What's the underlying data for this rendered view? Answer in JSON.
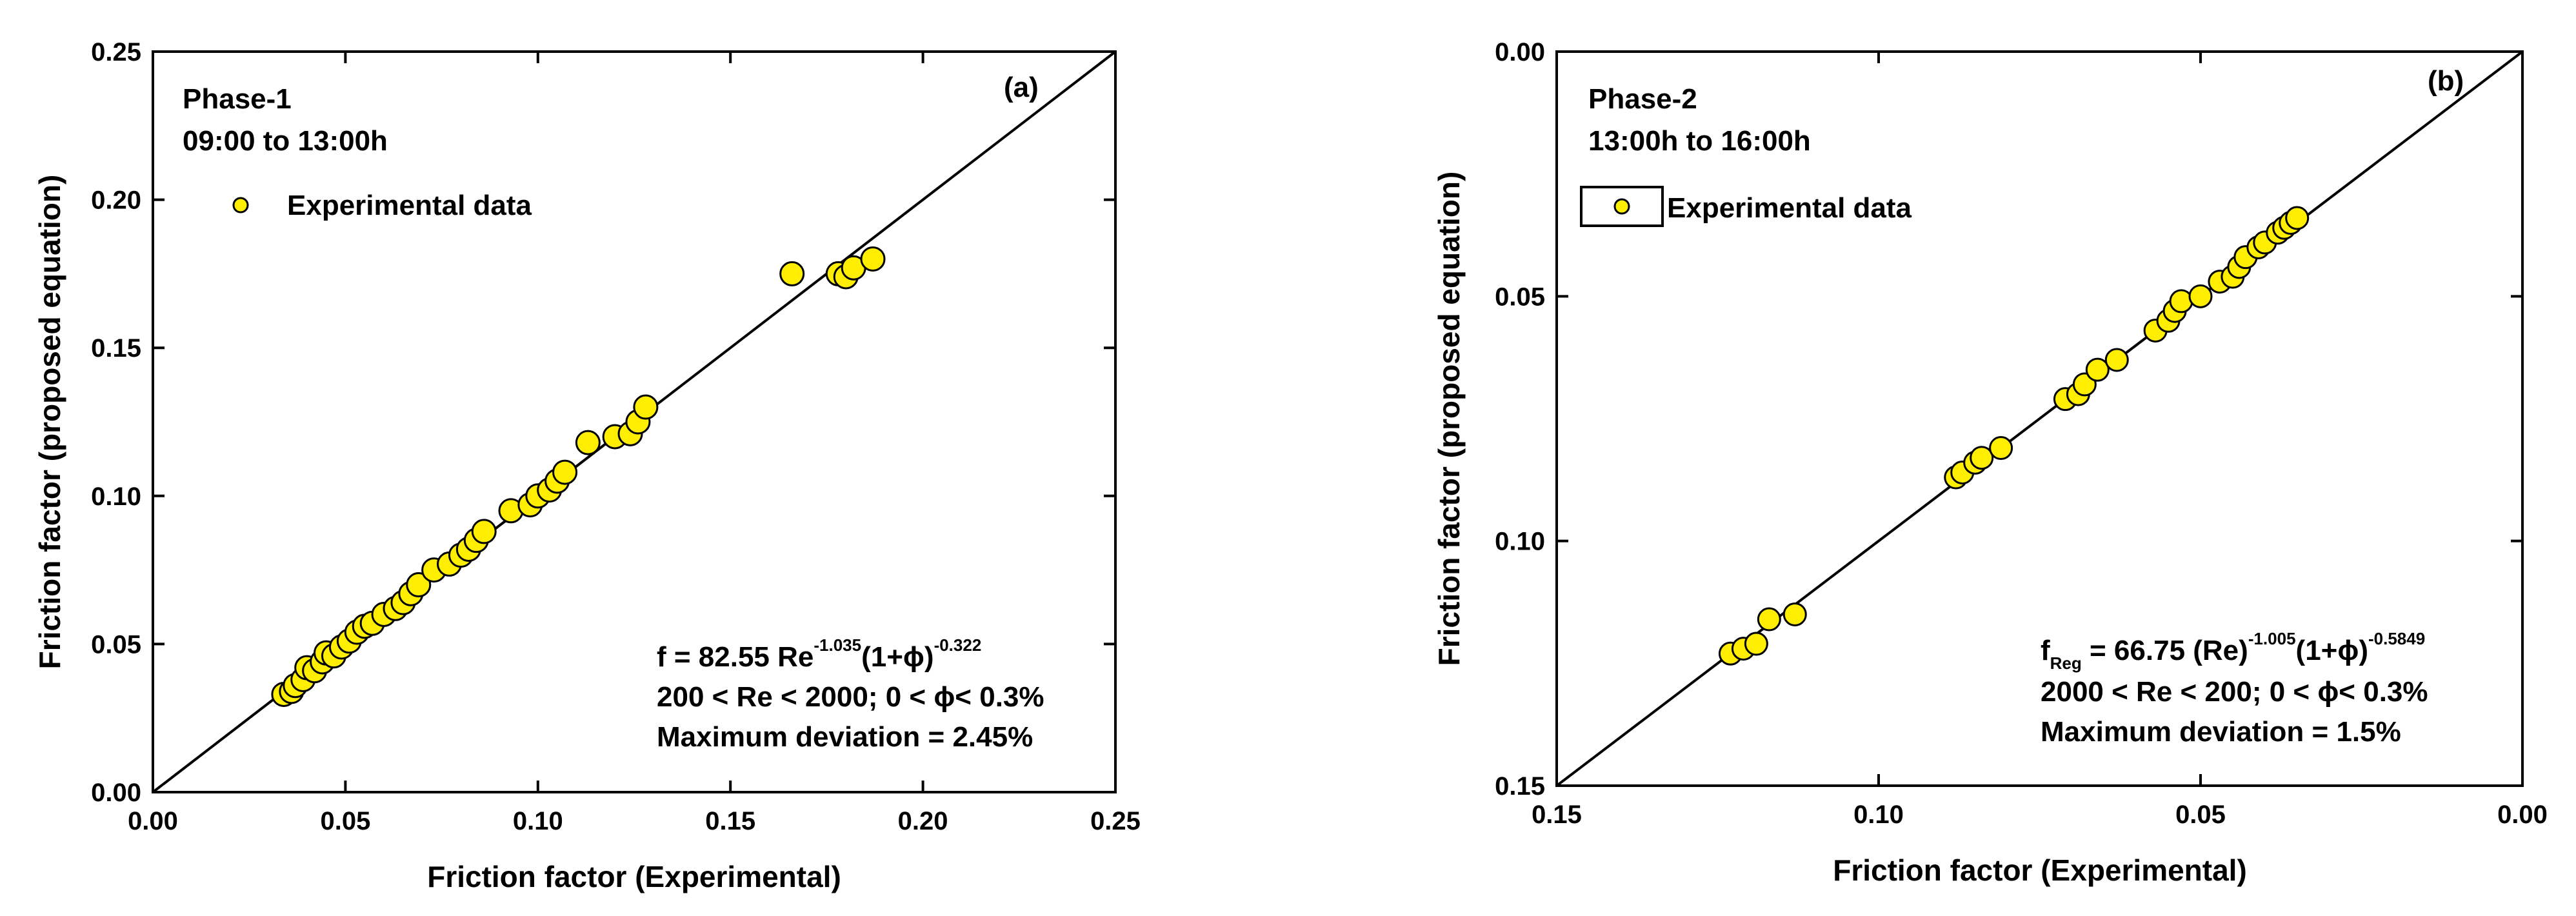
{
  "chart_data": [
    {
      "type": "scatter",
      "panel_label": "(a)",
      "phase": "Phase-1",
      "time_range": "09:00 to 13:00h",
      "xlabel": "Friction factor (Experimental)",
      "ylabel": "Friction factor (proposed equation)",
      "xlim": [
        0.0,
        0.25
      ],
      "ylim": [
        0.0,
        0.25
      ],
      "x_reversed": false,
      "y_reversed": false,
      "x_ticks": [
        "0.00",
        "0.05",
        "0.10",
        "0.15",
        "0.20",
        "0.25"
      ],
      "y_ticks": [
        "0.00",
        "0.05",
        "0.10",
        "0.15",
        "0.20",
        "0.25"
      ],
      "legend": {
        "label": "Experimental data",
        "boxed": false
      },
      "reference_line": "y = x",
      "equation": {
        "base": "f = 82.55 Re",
        "exp1": "-1.035",
        "mid": "(1+ϕ)",
        "exp2": "-0.322"
      },
      "range_text": "200 < Re < 2000; 0 < ϕ< 0.3%",
      "deviation_text": "Maximum deviation  = 2.45%",
      "series": [
        {
          "name": "Experimental data",
          "color": "#ffee00",
          "edge": "#000000",
          "points": [
            [
              0.034,
              0.033
            ],
            [
              0.036,
              0.034
            ],
            [
              0.037,
              0.036
            ],
            [
              0.039,
              0.038
            ],
            [
              0.04,
              0.042
            ],
            [
              0.042,
              0.041
            ],
            [
              0.044,
              0.044
            ],
            [
              0.045,
              0.047
            ],
            [
              0.047,
              0.046
            ],
            [
              0.049,
              0.049
            ],
            [
              0.051,
              0.051
            ],
            [
              0.053,
              0.054
            ],
            [
              0.055,
              0.056
            ],
            [
              0.057,
              0.057
            ],
            [
              0.06,
              0.06
            ],
            [
              0.063,
              0.062
            ],
            [
              0.065,
              0.064
            ],
            [
              0.067,
              0.067
            ],
            [
              0.069,
              0.07
            ],
            [
              0.073,
              0.075
            ],
            [
              0.077,
              0.077
            ],
            [
              0.08,
              0.08
            ],
            [
              0.082,
              0.082
            ],
            [
              0.084,
              0.085
            ],
            [
              0.086,
              0.088
            ],
            [
              0.093,
              0.095
            ],
            [
              0.098,
              0.097
            ],
            [
              0.1,
              0.1
            ],
            [
              0.103,
              0.102
            ],
            [
              0.105,
              0.105
            ],
            [
              0.107,
              0.108
            ],
            [
              0.113,
              0.118
            ],
            [
              0.12,
              0.12
            ],
            [
              0.124,
              0.121
            ],
            [
              0.126,
              0.125
            ],
            [
              0.128,
              0.13
            ],
            [
              0.166,
              0.175
            ],
            [
              0.178,
              0.175
            ],
            [
              0.18,
              0.174
            ],
            [
              0.182,
              0.177
            ],
            [
              0.187,
              0.18
            ]
          ]
        }
      ]
    },
    {
      "type": "scatter",
      "panel_label": "(b)",
      "phase": "Phase-2",
      "time_range": "13:00h to 16:00h",
      "xlabel": "Friction factor (Experimental)",
      "ylabel": "Friction factor (proposed equation)",
      "xlim": [
        0.15,
        0.0
      ],
      "ylim": [
        0.15,
        0.0
      ],
      "x_reversed": true,
      "y_reversed": true,
      "x_ticks": [
        "0.15",
        "0.10",
        "0.05",
        "0.00"
      ],
      "y_ticks": [
        "0.00",
        "0.05",
        "0.10",
        "0.15"
      ],
      "legend": {
        "label": "Experimental data",
        "boxed": true
      },
      "reference_line": "y = x",
      "equation": {
        "base": "f",
        "sub": "Reg",
        "mid1": " = 66.75 (Re)",
        "exp1": "-1.005",
        "mid2": "(1+ϕ)",
        "exp2": "-0.5849"
      },
      "range_text": "2000 < Re < 200; 0 < ϕ< 0.3%",
      "deviation_text": "Maximum deviation = 1.5%",
      "series": [
        {
          "name": "Experimental data",
          "color": "#ffee00",
          "edge": "#000000",
          "points": [
            [
              0.123,
              0.123
            ],
            [
              0.121,
              0.122
            ],
            [
              0.119,
              0.121
            ],
            [
              0.117,
              0.116
            ],
            [
              0.113,
              0.115
            ],
            [
              0.088,
              0.087
            ],
            [
              0.087,
              0.086
            ],
            [
              0.085,
              0.084
            ],
            [
              0.084,
              0.083
            ],
            [
              0.081,
              0.081
            ],
            [
              0.071,
              0.071
            ],
            [
              0.069,
              0.07
            ],
            [
              0.068,
              0.068
            ],
            [
              0.066,
              0.065
            ],
            [
              0.063,
              0.063
            ],
            [
              0.057,
              0.057
            ],
            [
              0.055,
              0.055
            ],
            [
              0.054,
              0.053
            ],
            [
              0.053,
              0.051
            ],
            [
              0.05,
              0.05
            ],
            [
              0.047,
              0.047
            ],
            [
              0.045,
              0.046
            ],
            [
              0.044,
              0.044
            ],
            [
              0.043,
              0.042
            ],
            [
              0.041,
              0.04
            ],
            [
              0.04,
              0.039
            ],
            [
              0.038,
              0.037
            ],
            [
              0.037,
              0.036
            ],
            [
              0.036,
              0.035
            ],
            [
              0.035,
              0.034
            ]
          ]
        }
      ]
    }
  ]
}
